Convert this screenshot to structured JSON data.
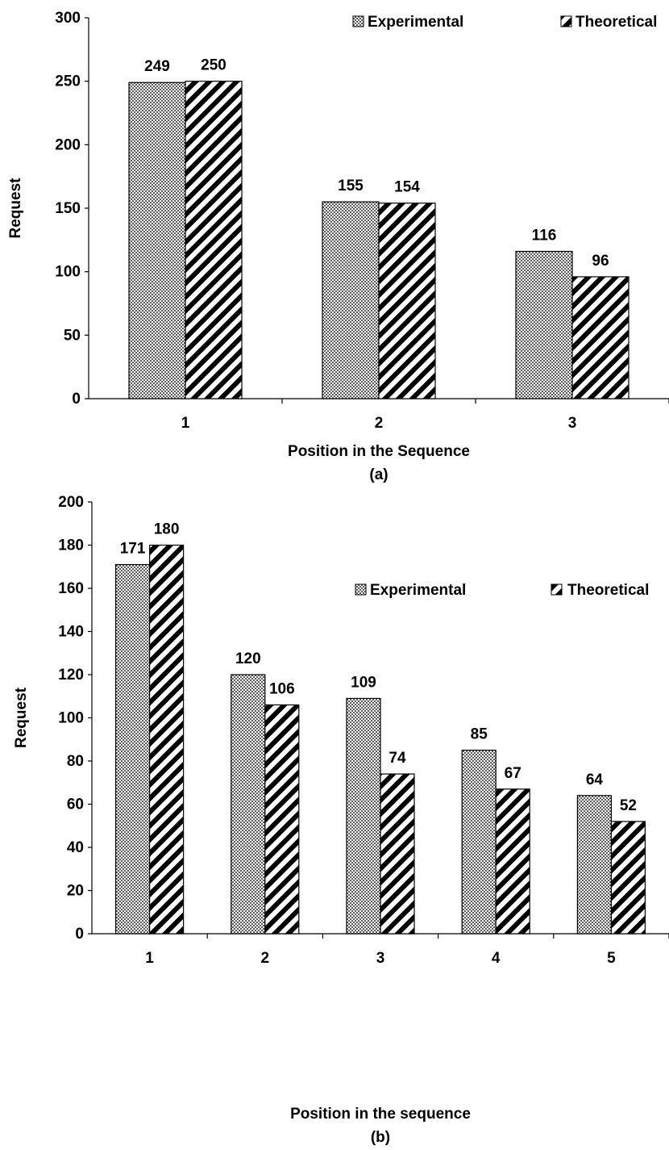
{
  "chart_data": [
    {
      "type": "bar",
      "caption": "(a)",
      "categories": [
        "1",
        "2",
        "3"
      ],
      "series": [
        {
          "name": "Experimental",
          "values": [
            249,
            155,
            116
          ],
          "pattern": "crosshatch"
        },
        {
          "name": "Theoretical",
          "values": [
            250,
            154,
            96
          ],
          "pattern": "diagonal"
        }
      ],
      "data_labels": [
        [
          "249",
          "155",
          "116"
        ],
        [
          "250",
          "154",
          "96"
        ]
      ],
      "xlabel": "Position in the Sequence",
      "ylabel": "Request",
      "ylim": [
        0,
        300
      ],
      "yticks": [
        0,
        50,
        100,
        150,
        200,
        250,
        300
      ],
      "ytick_labels": [
        "0",
        "50",
        "100",
        "150",
        "200",
        "250",
        "300"
      ],
      "grid": false,
      "legend_position": "top-right"
    },
    {
      "type": "bar",
      "caption": "(b)",
      "categories": [
        "1",
        "2",
        "3",
        "4",
        "5"
      ],
      "series": [
        {
          "name": "Experimental",
          "values": [
            171,
            120,
            109,
            85,
            64
          ],
          "pattern": "crosshatch"
        },
        {
          "name": "Theoretical",
          "values": [
            180,
            106,
            74,
            67,
            52
          ],
          "pattern": "diagonal"
        }
      ],
      "data_labels": [
        [
          "171",
          "120",
          "109",
          "85",
          "64"
        ],
        [
          "180",
          "106",
          "74",
          "67",
          "52"
        ]
      ],
      "xlabel": "Position in the sequence",
      "ylabel": "Request",
      "ylim": [
        0,
        200
      ],
      "yticks": [
        0,
        20,
        40,
        60,
        80,
        100,
        120,
        140,
        160,
        180,
        200
      ],
      "ytick_labels": [
        "0",
        "20",
        "40",
        "60",
        "80",
        "100",
        "120",
        "140",
        "160",
        "180",
        "200"
      ],
      "grid": false,
      "legend_position": "top-right"
    }
  ],
  "colors": {
    "bar_outline": "#000000",
    "pattern_ink": "#000000",
    "background": "#ffffff"
  }
}
